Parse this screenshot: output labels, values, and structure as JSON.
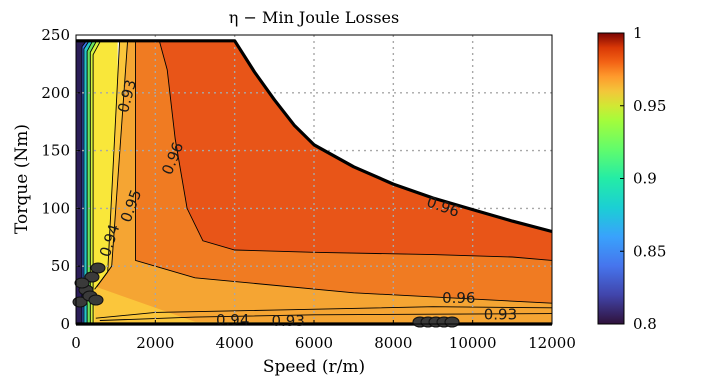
{
  "chart_data": {
    "type": "contour",
    "title": "η  −  Min Joule Losses",
    "xlabel": "Speed (r/m)",
    "ylabel": "Torque (Nm)",
    "xlim": [
      0,
      12000
    ],
    "ylim": [
      0,
      250
    ],
    "x_ticks": [
      "0",
      "2000",
      "4000",
      "6000",
      "8000",
      "10000",
      "12000"
    ],
    "y_ticks": [
      "0",
      "50",
      "100",
      "150",
      "200",
      "250"
    ],
    "grid": true,
    "max_torque_envelope": {
      "speed": [
        0,
        4000,
        4500,
        5000,
        5500,
        6000,
        7000,
        8000,
        9000,
        10000,
        11000,
        12000
      ],
      "torque": [
        245,
        245,
        218,
        194,
        172,
        155,
        136,
        121,
        109,
        99,
        89,
        80
      ]
    },
    "contour_labels": [
      {
        "text": "0.93",
        "speed": 1300,
        "torque": 197,
        "angle": -75
      },
      {
        "text": "0.96",
        "speed": 2450,
        "torque": 143,
        "angle": -68
      },
      {
        "text": "0.95",
        "speed": 1400,
        "torque": 102,
        "angle": -70
      },
      {
        "text": "0.94",
        "speed": 860,
        "torque": 72,
        "angle": -72
      },
      {
        "text": "0.96",
        "speed": 9250,
        "torque": 101,
        "angle": 20
      },
      {
        "text": "0.96",
        "speed": 9650,
        "torque": 22,
        "angle": 0
      },
      {
        "text": "0.94",
        "speed": 3950,
        "torque": 3,
        "angle": 0
      },
      {
        "text": "0.93",
        "speed": 5350,
        "torque": 2,
        "angle": 0
      },
      {
        "text": "0.93",
        "speed": 10700,
        "torque": 8,
        "angle": 0
      }
    ],
    "colorbar": {
      "min": 0.8,
      "max": 1,
      "ticks": [
        "0.8",
        "0.85",
        "0.9",
        "0.95",
        "1"
      ]
    },
    "colors": {
      "peak": "#e85518",
      "high": "#f07b22",
      "mid_high": "#f5a533",
      "mid": "#fbc63b",
      "low": "#f9e73a",
      "low2": "#d3f23e",
      "green": "#6be45c",
      "cyan": "#27c4c9",
      "blue": "#3a6fe8",
      "dark": "#2b1d57"
    }
  }
}
